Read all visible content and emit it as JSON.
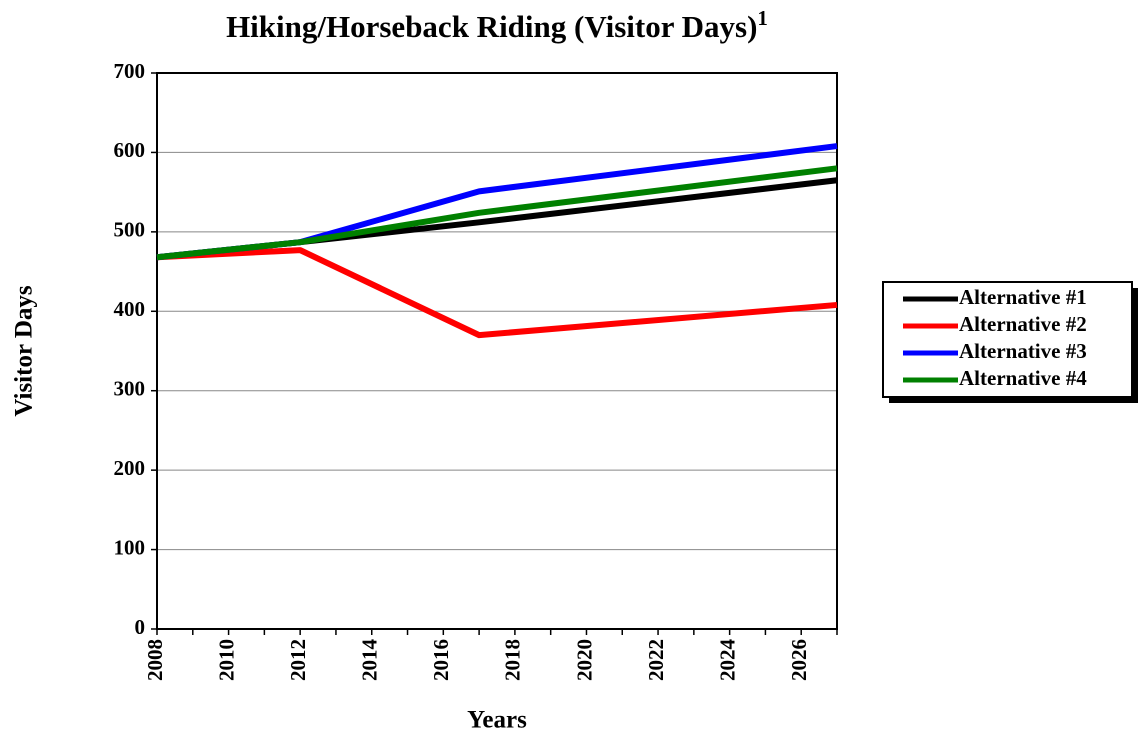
{
  "chart_data": {
    "type": "line",
    "title": "Hiking/Horseback Riding (Visitor Days)",
    "title_superscript": "1",
    "x_label": "Years",
    "y_label": "Visitor Days",
    "x": [
      2008,
      2012,
      2017,
      2027
    ],
    "series": [
      {
        "name": "Alternative #1",
        "color": "#000000",
        "values": [
          468,
          487,
          512,
          565
        ]
      },
      {
        "name": "Alternative #2",
        "color": "#ff0000",
        "values": [
          468,
          477,
          370,
          408
        ]
      },
      {
        "name": "Alternative #3",
        "color": "#0000ff",
        "values": [
          468,
          487,
          551,
          608
        ]
      },
      {
        "name": "Alternative #4",
        "color": "#008000",
        "values": [
          468,
          487,
          524,
          580
        ]
      }
    ],
    "xlim": [
      2008,
      2027
    ],
    "xticks": [
      2008,
      2010,
      2012,
      2014,
      2016,
      2018,
      2020,
      2022,
      2024,
      2026
    ],
    "xminorticks": [
      2009,
      2011,
      2013,
      2015,
      2017,
      2019,
      2021,
      2023,
      2025,
      2027
    ],
    "ylim": [
      0,
      700
    ],
    "yticks": [
      0,
      100,
      200,
      300,
      400,
      500,
      600,
      700
    ],
    "grid": true,
    "legend": "right"
  }
}
